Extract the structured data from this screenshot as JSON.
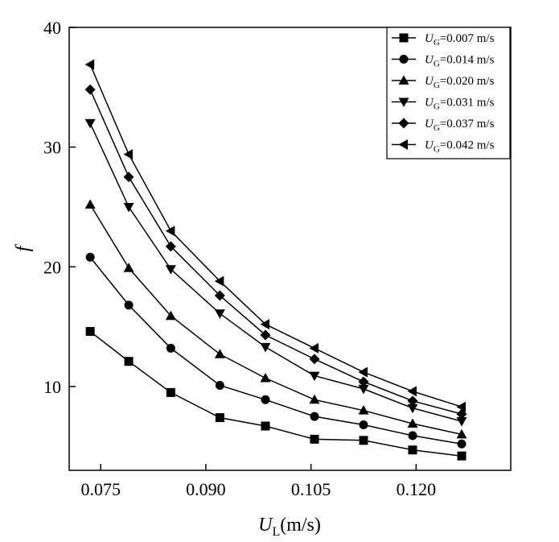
{
  "chart_data": {
    "type": "line",
    "title": "",
    "xlabel_main": "U",
    "xlabel_sub": "L",
    "xlabel_unit": "(m/s)",
    "ylabel": "f",
    "xlim": [
      0.0705,
      0.1335
    ],
    "ylim": [
      3,
      40
    ],
    "xticks": [
      0.075,
      0.09,
      0.105,
      0.12
    ],
    "xtick_labels": [
      "0.075",
      "0.090",
      "0.105",
      "0.120"
    ],
    "yticks": [
      10,
      20,
      30,
      40
    ],
    "ytick_labels": [
      "10",
      "20",
      "30",
      "40"
    ],
    "x": [
      0.0735,
      0.079,
      0.085,
      0.092,
      0.0985,
      0.1055,
      0.1125,
      0.1195,
      0.1265
    ],
    "legend_position": "top-right",
    "series": [
      {
        "name_main": "U",
        "name_sub": "G",
        "name_rest": "=0.007 m/s",
        "marker": "square",
        "values": [
          14.6,
          12.1,
          9.5,
          7.4,
          6.7,
          5.6,
          5.5,
          4.7,
          4.2
        ]
      },
      {
        "name_main": "U",
        "name_sub": "G",
        "name_rest": "=0.014 m/s",
        "marker": "circle",
        "values": [
          20.8,
          16.8,
          13.2,
          10.1,
          8.9,
          7.5,
          6.8,
          5.9,
          5.2
        ]
      },
      {
        "name_main": "U",
        "name_sub": "G",
        "name_rest": "=0.020 m/s",
        "marker": "triangle-up",
        "values": [
          25.2,
          19.9,
          15.9,
          12.7,
          10.7,
          8.9,
          8.0,
          6.9,
          6.0
        ]
      },
      {
        "name_main": "U",
        "name_sub": "G",
        "name_rest": "=0.031 m/s",
        "marker": "triangle-down",
        "values": [
          32.0,
          25.0,
          19.8,
          16.1,
          13.3,
          10.9,
          9.8,
          8.2,
          7.1
        ]
      },
      {
        "name_main": "U",
        "name_sub": "G",
        "name_rest": "=0.037 m/s",
        "marker": "diamond",
        "values": [
          34.8,
          27.5,
          21.7,
          17.6,
          14.3,
          12.3,
          10.4,
          8.8,
          7.7
        ]
      },
      {
        "name_main": "U",
        "name_sub": "G",
        "name_rest": "=0.042 m/s",
        "marker": "triangle-left",
        "values": [
          36.9,
          29.4,
          23.0,
          18.8,
          15.2,
          13.2,
          11.2,
          9.6,
          8.3
        ]
      }
    ]
  }
}
